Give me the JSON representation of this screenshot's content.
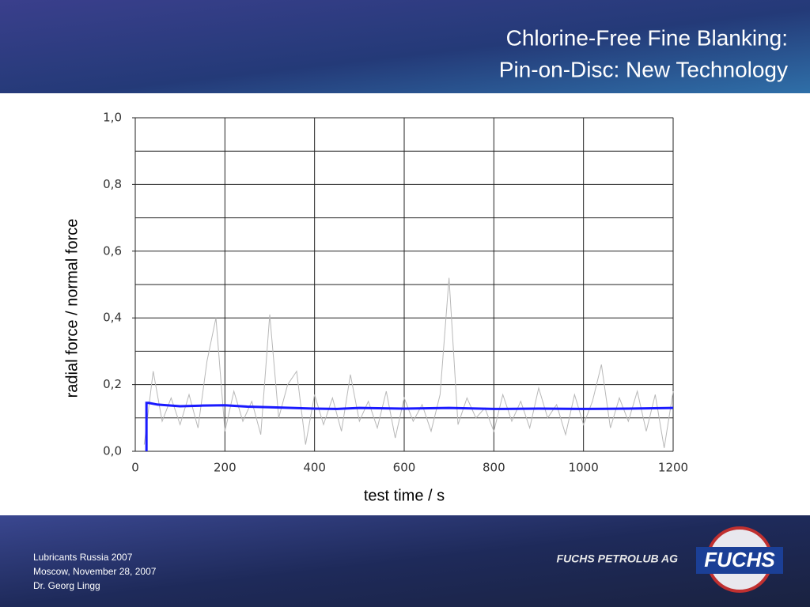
{
  "header": {
    "title_lines": [
      "Chlorine-Free Fine Blanking:",
      "Pin-on-Disc: New Technology"
    ]
  },
  "chart_data": {
    "type": "line",
    "xlabel": "test time / s",
    "ylabel": "radial force / normal force",
    "xlim": [
      0,
      1200
    ],
    "xticks": [
      0,
      200,
      400,
      600,
      800,
      1000,
      1200
    ],
    "ylim": [
      0,
      1.0
    ],
    "yticks": [
      {
        "value": 0,
        "label": "0,0"
      },
      {
        "value": 0.2,
        "label": "0,2"
      },
      {
        "value": 0.4,
        "label": "0,4"
      },
      {
        "value": 0.6,
        "label": "0,6"
      },
      {
        "value": 0.8,
        "label": "0,8"
      },
      {
        "value": 1.0,
        "label": "1,0"
      }
    ],
    "yminor_ticks": [
      0.1,
      0.3,
      0.5,
      0.7,
      0.9
    ],
    "grid": true,
    "series": [
      {
        "color": "#b8b8b8",
        "x": [
          20,
          40,
          60,
          80,
          100,
          120,
          140,
          160,
          180,
          200,
          220,
          240,
          260,
          280,
          300,
          320,
          340,
          360,
          380,
          400,
          420,
          440,
          460,
          480,
          500,
          520,
          540,
          560,
          580,
          600,
          620,
          640,
          660,
          680,
          700,
          720,
          740,
          760,
          780,
          800,
          820,
          840,
          860,
          880,
          900,
          920,
          940,
          960,
          980,
          1000,
          1020,
          1040,
          1060,
          1080,
          1100,
          1120,
          1140,
          1160,
          1180,
          1200
        ],
        "values": [
          0.02,
          0.24,
          0.09,
          0.16,
          0.08,
          0.17,
          0.07,
          0.27,
          0.4,
          0.06,
          0.18,
          0.09,
          0.15,
          0.05,
          0.41,
          0.1,
          0.2,
          0.24,
          0.02,
          0.17,
          0.08,
          0.16,
          0.06,
          0.23,
          0.09,
          0.15,
          0.07,
          0.18,
          0.04,
          0.16,
          0.09,
          0.14,
          0.06,
          0.17,
          0.52,
          0.08,
          0.16,
          0.1,
          0.13,
          0.06,
          0.17,
          0.09,
          0.15,
          0.07,
          0.19,
          0.1,
          0.14,
          0.05,
          0.17,
          0.08,
          0.15,
          0.26,
          0.07,
          0.16,
          0.09,
          0.18,
          0.06,
          0.17,
          0.01,
          0.18
        ]
      },
      {
        "color": "#1a1aff",
        "x": [
          25,
          25,
          30,
          50,
          100,
          150,
          200,
          250,
          300,
          350,
          400,
          450,
          500,
          600,
          700,
          800,
          900,
          1000,
          1100,
          1200
        ],
        "values": [
          0,
          0.145,
          0.145,
          0.14,
          0.135,
          0.137,
          0.138,
          0.134,
          0.132,
          0.13,
          0.128,
          0.127,
          0.13,
          0.128,
          0.13,
          0.127,
          0.128,
          0.127,
          0.128,
          0.13
        ]
      }
    ]
  },
  "footer": {
    "lines": [
      "Lubricants Russia 2007",
      "Moscow, November  28, 2007",
      "Dr. Georg Lingg"
    ],
    "company": "FUCHS PETROLUB AG",
    "logo": "FUCHS"
  }
}
